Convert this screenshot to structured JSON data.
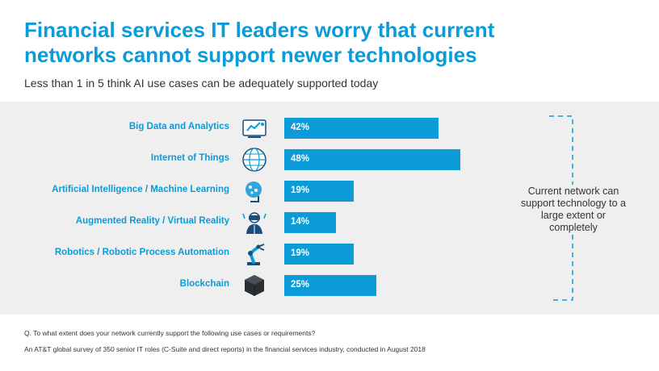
{
  "header": {
    "title": "Financial services IT leaders worry that current networks cannot support newer technologies",
    "subtitle": "Less than 1 in 5 think AI use cases can be adequately supported today"
  },
  "chart_data": {
    "type": "bar",
    "orientation": "horizontal",
    "categories": [
      "Big Data and Analytics",
      "Internet of Things",
      "Artificial Intelligence / Machine Learning",
      "Augmented Reality / Virtual Reality",
      "Robotics / Robotic Process Automation",
      "Blockchain"
    ],
    "values": [
      42,
      48,
      19,
      14,
      19,
      25
    ],
    "value_labels": [
      "42%",
      "48%",
      "19%",
      "14%",
      "19%",
      "25%"
    ],
    "icons": [
      "analytics-icon",
      "globe-icon",
      "ai-brain-icon",
      "vr-person-icon",
      "robot-arm-icon",
      "blockchain-cube-icon"
    ],
    "annotation": "Current network can support technology to a large extent or completely",
    "bar_color": "#0a9bd8",
    "label_color": "#0a9bd8"
  },
  "footer": {
    "question": "Q. To what extent does your network currently support the following use cases or requirements?",
    "source": "An AT&T global survey of 350 senior IT roles (C-Suite and direct reports) in the financial services industry, conducted in August 2018"
  }
}
